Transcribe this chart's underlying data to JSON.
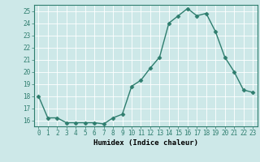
{
  "x": [
    0,
    1,
    2,
    3,
    4,
    5,
    6,
    7,
    8,
    9,
    10,
    11,
    12,
    13,
    14,
    15,
    16,
    17,
    18,
    19,
    20,
    21,
    22,
    23
  ],
  "y": [
    18,
    16.2,
    16.2,
    15.8,
    15.8,
    15.8,
    15.8,
    15.7,
    16.2,
    16.5,
    18.8,
    19.3,
    20.3,
    21.2,
    24.0,
    24.6,
    25.2,
    24.6,
    24.8,
    23.3,
    21.2,
    20.0,
    18.5,
    18.3
  ],
  "line_color": "#2e7d6e",
  "marker": "D",
  "marker_size": 2.5,
  "bg_color": "#cde8e8",
  "grid_color": "#b0d4d4",
  "xlabel": "Humidex (Indice chaleur)",
  "ylim": [
    15.5,
    25.5
  ],
  "xlim": [
    -0.5,
    23.5
  ],
  "yticks": [
    16,
    17,
    18,
    19,
    20,
    21,
    22,
    23,
    24,
    25
  ],
  "xticks": [
    0,
    1,
    2,
    3,
    4,
    5,
    6,
    7,
    8,
    9,
    10,
    11,
    12,
    13,
    14,
    15,
    16,
    17,
    18,
    19,
    20,
    21,
    22,
    23
  ],
  "xlabel_fontsize": 6.5,
  "tick_fontsize": 5.5,
  "line_width": 1.0,
  "spine_color": "#2e7d6e"
}
